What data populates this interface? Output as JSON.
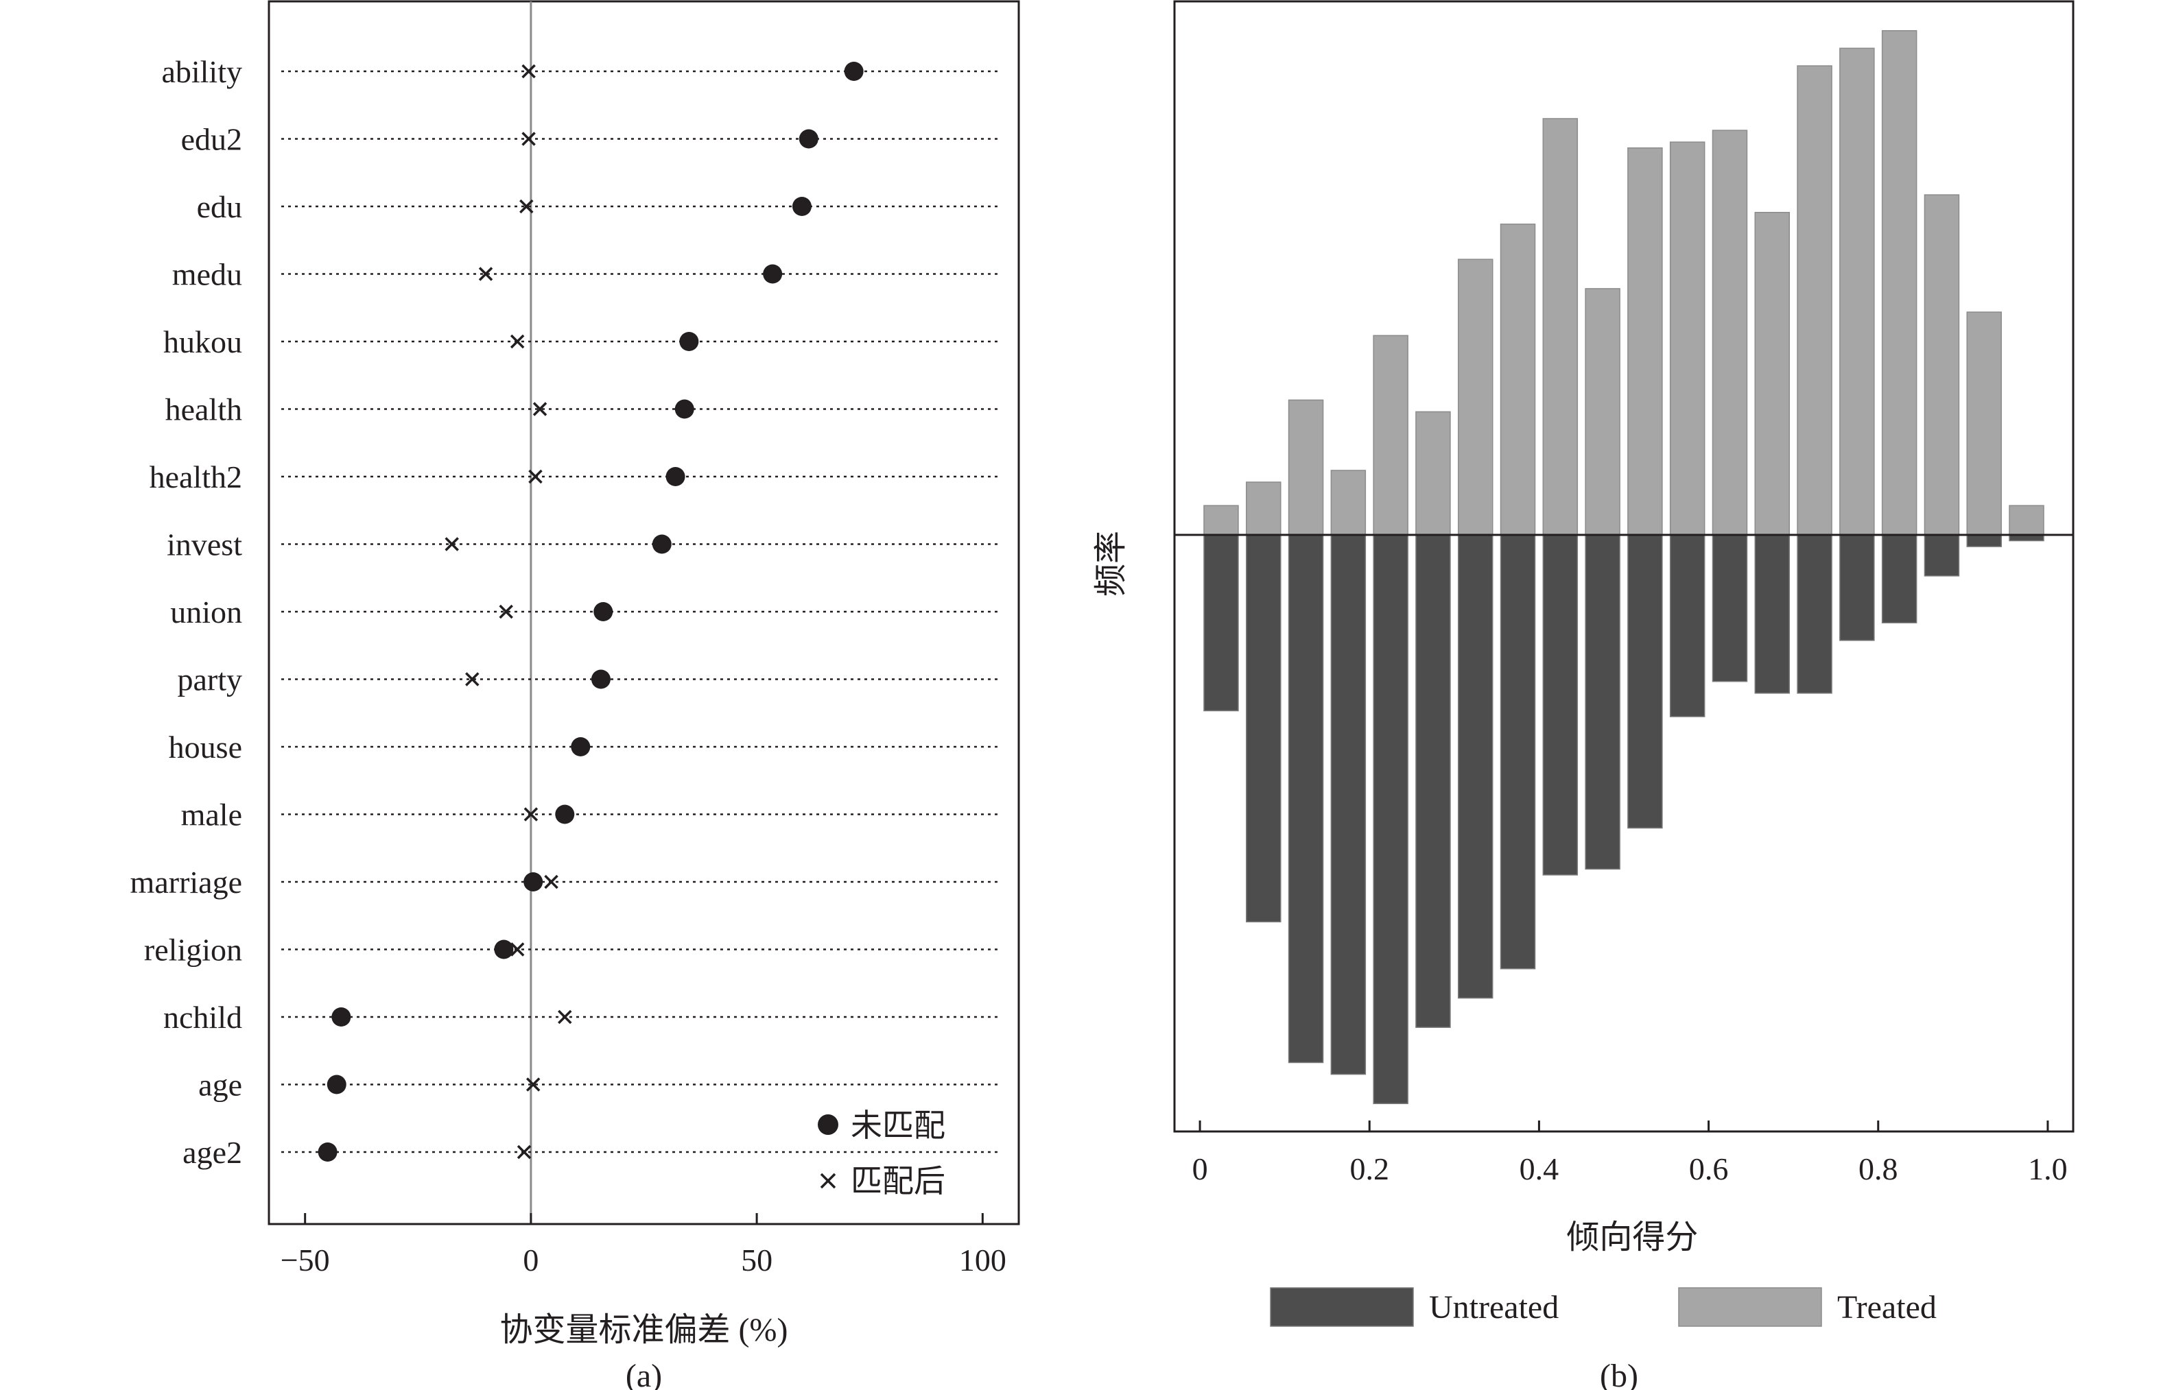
{
  "chart_data": [
    {
      "type": "scatter",
      "panel_label": "(a)",
      "xlabel": "协变量标准偏差 (%)",
      "ylabel": "",
      "xlim": [
        -58,
        108
      ],
      "xticks": [
        -50,
        0,
        50,
        100
      ],
      "xtick_labels": [
        "−50",
        "0",
        "50",
        "100"
      ],
      "grid": false,
      "legend_position": "bottom-right",
      "categories": [
        "ability",
        "edu2",
        "edu",
        "medu",
        "hukou",
        "health",
        "health2",
        "invest",
        "union",
        "party",
        "house",
        "male",
        "marriage",
        "religion",
        "nchild",
        "age",
        "age2"
      ],
      "series": [
        {
          "name": "未匹配",
          "marker": "filled-circle",
          "values": [
            71.5,
            61.5,
            60,
            53.5,
            35,
            34,
            32,
            29,
            16,
            15.5,
            11,
            7.5,
            0.5,
            -6,
            -42,
            -43,
            -45
          ]
        },
        {
          "name": "匹配后",
          "marker": "x",
          "values": [
            -0.5,
            -0.5,
            -1,
            -10,
            -3,
            2,
            1,
            -17.5,
            -5.5,
            -13,
            null,
            0,
            4.5,
            -3,
            7.5,
            0.5,
            -1.5
          ]
        }
      ]
    },
    {
      "type": "bar",
      "panel_label": "(b)",
      "xlabel": "倾向得分",
      "ylabel": "频率",
      "xlim": [
        -0.03,
        1.03
      ],
      "xticks": [
        0,
        0.2,
        0.4,
        0.6,
        0.8,
        1.0
      ],
      "xtick_labels": [
        "0",
        "0.2",
        "0.4",
        "0.6",
        "0.8",
        "1.0"
      ],
      "grid": false,
      "legend_position": "bottom",
      "colors": {
        "Untreated": "#4d4d4d",
        "Treated": "#a6a6a6"
      },
      "bin_centers": [
        0.025,
        0.075,
        0.125,
        0.175,
        0.225,
        0.275,
        0.325,
        0.375,
        0.425,
        0.475,
        0.525,
        0.575,
        0.625,
        0.675,
        0.725,
        0.775,
        0.825,
        0.875,
        0.925,
        0.975
      ],
      "series": [
        {
          "name": "Treated",
          "values": [
            0.05,
            0.09,
            0.23,
            0.11,
            0.34,
            0.21,
            0.47,
            0.53,
            0.71,
            0.42,
            0.66,
            0.67,
            0.69,
            0.55,
            0.8,
            0.83,
            0.86,
            0.58,
            0.38,
            0.05
          ]
        },
        {
          "name": "Untreated",
          "values": [
            -0.3,
            -0.66,
            -0.9,
            -0.92,
            -0.97,
            -0.84,
            -0.79,
            -0.74,
            -0.58,
            -0.57,
            -0.5,
            -0.31,
            -0.25,
            -0.27,
            -0.27,
            -0.18,
            -0.15,
            -0.07,
            -0.02,
            -0.01
          ]
        }
      ]
    }
  ]
}
